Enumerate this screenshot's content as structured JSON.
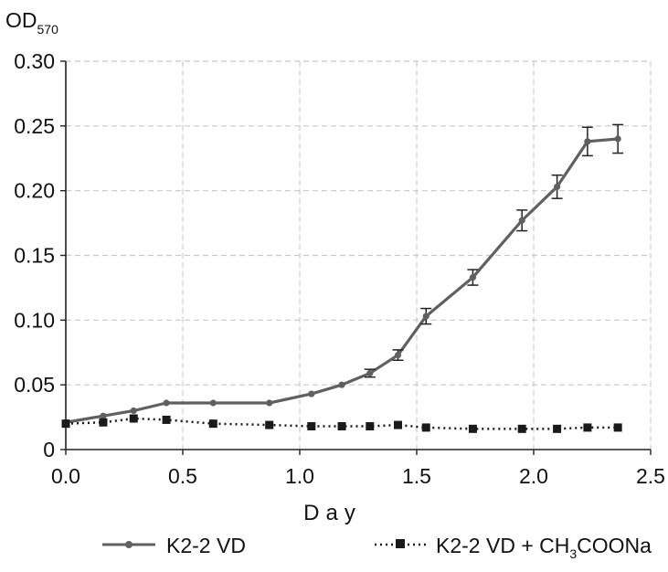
{
  "chart_data": {
    "type": "line",
    "title": "",
    "ylabel_main": "OD",
    "ylabel_sub": "570",
    "xlabel": "Day",
    "xlim": [
      0.0,
      2.5
    ],
    "ylim": [
      0.0,
      0.3
    ],
    "x_ticks": [
      0.0,
      0.5,
      1.0,
      1.5,
      2.0,
      2.5
    ],
    "x_tick_labels": [
      "0.0",
      "0.5",
      "1.0",
      "1.5",
      "2.0",
      "2.5"
    ],
    "y_ticks": [
      0.0,
      0.05,
      0.1,
      0.15,
      0.2,
      0.25,
      0.3
    ],
    "y_tick_labels": [
      "0",
      "0.05",
      "0.10",
      "0.15",
      "0.20",
      "0.25",
      "0.30"
    ],
    "grid": true,
    "legend_position": "bottom",
    "series": [
      {
        "name": "K2-2 VD",
        "style": "solid",
        "marker": "circle",
        "color": "#606060",
        "points": [
          {
            "x": 0.0,
            "y": 0.021
          },
          {
            "x": 0.16,
            "y": 0.026
          },
          {
            "x": 0.29,
            "y": 0.03
          },
          {
            "x": 0.43,
            "y": 0.036
          },
          {
            "x": 0.63,
            "y": 0.036
          },
          {
            "x": 0.87,
            "y": 0.036
          },
          {
            "x": 1.05,
            "y": 0.043
          },
          {
            "x": 1.18,
            "y": 0.05
          },
          {
            "x": 1.3,
            "y": 0.059,
            "err": 0.003
          },
          {
            "x": 1.42,
            "y": 0.073,
            "err": 0.004
          },
          {
            "x": 1.54,
            "y": 0.103,
            "err": 0.006
          },
          {
            "x": 1.74,
            "y": 0.133,
            "err": 0.006
          },
          {
            "x": 1.95,
            "y": 0.177,
            "err": 0.008
          },
          {
            "x": 2.1,
            "y": 0.203,
            "err": 0.009
          },
          {
            "x": 2.23,
            "y": 0.238,
            "err": 0.011
          },
          {
            "x": 2.36,
            "y": 0.24,
            "err": 0.011
          }
        ]
      },
      {
        "name_main": "K2-2 VD + CH",
        "name_sub": "3",
        "name_tail": "COONa",
        "style": "dotted",
        "marker": "square",
        "color": "#1a1a1a",
        "points": [
          {
            "x": 0.0,
            "y": 0.02
          },
          {
            "x": 0.16,
            "y": 0.021
          },
          {
            "x": 0.29,
            "y": 0.024
          },
          {
            "x": 0.43,
            "y": 0.023
          },
          {
            "x": 0.63,
            "y": 0.02
          },
          {
            "x": 0.87,
            "y": 0.019
          },
          {
            "x": 1.05,
            "y": 0.018
          },
          {
            "x": 1.18,
            "y": 0.018
          },
          {
            "x": 1.3,
            "y": 0.018
          },
          {
            "x": 1.42,
            "y": 0.019
          },
          {
            "x": 1.54,
            "y": 0.017
          },
          {
            "x": 1.74,
            "y": 0.016
          },
          {
            "x": 1.95,
            "y": 0.016
          },
          {
            "x": 2.1,
            "y": 0.016
          },
          {
            "x": 2.23,
            "y": 0.017
          },
          {
            "x": 2.36,
            "y": 0.017
          }
        ]
      }
    ]
  }
}
